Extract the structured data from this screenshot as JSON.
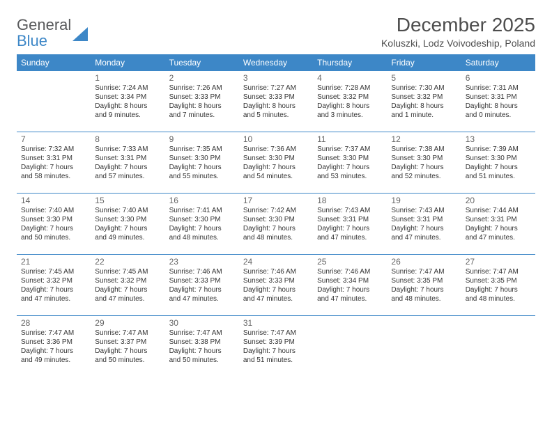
{
  "brand": {
    "word1": "General",
    "word2": "Blue",
    "triangle_color": "#3d87c7"
  },
  "title": "December 2025",
  "location": "Koluszki, Lodz Voivodeship, Poland",
  "theme": {
    "header_bg": "#3d87c7",
    "header_text": "#ffffff",
    "rule_color": "#3d87c7"
  },
  "weekdays": [
    "Sunday",
    "Monday",
    "Tuesday",
    "Wednesday",
    "Thursday",
    "Friday",
    "Saturday"
  ],
  "weeks": [
    [
      null,
      {
        "n": "1",
        "sr": "Sunrise: 7:24 AM",
        "ss": "Sunset: 3:34 PM",
        "dl": "Daylight: 8 hours and 9 minutes."
      },
      {
        "n": "2",
        "sr": "Sunrise: 7:26 AM",
        "ss": "Sunset: 3:33 PM",
        "dl": "Daylight: 8 hours and 7 minutes."
      },
      {
        "n": "3",
        "sr": "Sunrise: 7:27 AM",
        "ss": "Sunset: 3:33 PM",
        "dl": "Daylight: 8 hours and 5 minutes."
      },
      {
        "n": "4",
        "sr": "Sunrise: 7:28 AM",
        "ss": "Sunset: 3:32 PM",
        "dl": "Daylight: 8 hours and 3 minutes."
      },
      {
        "n": "5",
        "sr": "Sunrise: 7:30 AM",
        "ss": "Sunset: 3:32 PM",
        "dl": "Daylight: 8 hours and 1 minute."
      },
      {
        "n": "6",
        "sr": "Sunrise: 7:31 AM",
        "ss": "Sunset: 3:31 PM",
        "dl": "Daylight: 8 hours and 0 minutes."
      }
    ],
    [
      {
        "n": "7",
        "sr": "Sunrise: 7:32 AM",
        "ss": "Sunset: 3:31 PM",
        "dl": "Daylight: 7 hours and 58 minutes."
      },
      {
        "n": "8",
        "sr": "Sunrise: 7:33 AM",
        "ss": "Sunset: 3:31 PM",
        "dl": "Daylight: 7 hours and 57 minutes."
      },
      {
        "n": "9",
        "sr": "Sunrise: 7:35 AM",
        "ss": "Sunset: 3:30 PM",
        "dl": "Daylight: 7 hours and 55 minutes."
      },
      {
        "n": "10",
        "sr": "Sunrise: 7:36 AM",
        "ss": "Sunset: 3:30 PM",
        "dl": "Daylight: 7 hours and 54 minutes."
      },
      {
        "n": "11",
        "sr": "Sunrise: 7:37 AM",
        "ss": "Sunset: 3:30 PM",
        "dl": "Daylight: 7 hours and 53 minutes."
      },
      {
        "n": "12",
        "sr": "Sunrise: 7:38 AM",
        "ss": "Sunset: 3:30 PM",
        "dl": "Daylight: 7 hours and 52 minutes."
      },
      {
        "n": "13",
        "sr": "Sunrise: 7:39 AM",
        "ss": "Sunset: 3:30 PM",
        "dl": "Daylight: 7 hours and 51 minutes."
      }
    ],
    [
      {
        "n": "14",
        "sr": "Sunrise: 7:40 AM",
        "ss": "Sunset: 3:30 PM",
        "dl": "Daylight: 7 hours and 50 minutes."
      },
      {
        "n": "15",
        "sr": "Sunrise: 7:40 AM",
        "ss": "Sunset: 3:30 PM",
        "dl": "Daylight: 7 hours and 49 minutes."
      },
      {
        "n": "16",
        "sr": "Sunrise: 7:41 AM",
        "ss": "Sunset: 3:30 PM",
        "dl": "Daylight: 7 hours and 48 minutes."
      },
      {
        "n": "17",
        "sr": "Sunrise: 7:42 AM",
        "ss": "Sunset: 3:30 PM",
        "dl": "Daylight: 7 hours and 48 minutes."
      },
      {
        "n": "18",
        "sr": "Sunrise: 7:43 AM",
        "ss": "Sunset: 3:31 PM",
        "dl": "Daylight: 7 hours and 47 minutes."
      },
      {
        "n": "19",
        "sr": "Sunrise: 7:43 AM",
        "ss": "Sunset: 3:31 PM",
        "dl": "Daylight: 7 hours and 47 minutes."
      },
      {
        "n": "20",
        "sr": "Sunrise: 7:44 AM",
        "ss": "Sunset: 3:31 PM",
        "dl": "Daylight: 7 hours and 47 minutes."
      }
    ],
    [
      {
        "n": "21",
        "sr": "Sunrise: 7:45 AM",
        "ss": "Sunset: 3:32 PM",
        "dl": "Daylight: 7 hours and 47 minutes."
      },
      {
        "n": "22",
        "sr": "Sunrise: 7:45 AM",
        "ss": "Sunset: 3:32 PM",
        "dl": "Daylight: 7 hours and 47 minutes."
      },
      {
        "n": "23",
        "sr": "Sunrise: 7:46 AM",
        "ss": "Sunset: 3:33 PM",
        "dl": "Daylight: 7 hours and 47 minutes."
      },
      {
        "n": "24",
        "sr": "Sunrise: 7:46 AM",
        "ss": "Sunset: 3:33 PM",
        "dl": "Daylight: 7 hours and 47 minutes."
      },
      {
        "n": "25",
        "sr": "Sunrise: 7:46 AM",
        "ss": "Sunset: 3:34 PM",
        "dl": "Daylight: 7 hours and 47 minutes."
      },
      {
        "n": "26",
        "sr": "Sunrise: 7:47 AM",
        "ss": "Sunset: 3:35 PM",
        "dl": "Daylight: 7 hours and 48 minutes."
      },
      {
        "n": "27",
        "sr": "Sunrise: 7:47 AM",
        "ss": "Sunset: 3:35 PM",
        "dl": "Daylight: 7 hours and 48 minutes."
      }
    ],
    [
      {
        "n": "28",
        "sr": "Sunrise: 7:47 AM",
        "ss": "Sunset: 3:36 PM",
        "dl": "Daylight: 7 hours and 49 minutes."
      },
      {
        "n": "29",
        "sr": "Sunrise: 7:47 AM",
        "ss": "Sunset: 3:37 PM",
        "dl": "Daylight: 7 hours and 50 minutes."
      },
      {
        "n": "30",
        "sr": "Sunrise: 7:47 AM",
        "ss": "Sunset: 3:38 PM",
        "dl": "Daylight: 7 hours and 50 minutes."
      },
      {
        "n": "31",
        "sr": "Sunrise: 7:47 AM",
        "ss": "Sunset: 3:39 PM",
        "dl": "Daylight: 7 hours and 51 minutes."
      },
      null,
      null,
      null
    ]
  ]
}
